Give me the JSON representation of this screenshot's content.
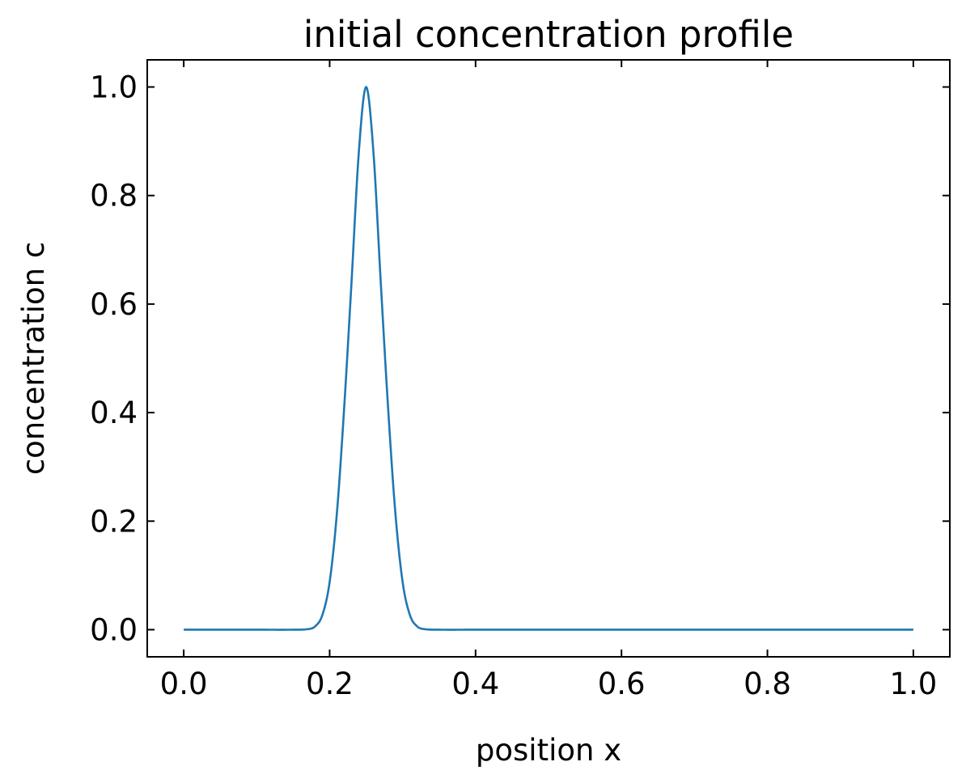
{
  "chart_data": {
    "type": "line",
    "title": "initial concentration profile",
    "xlabel": "position x",
    "ylabel": "concentration c",
    "xlim": [
      -0.05,
      1.05
    ],
    "ylim": [
      -0.05,
      1.05
    ],
    "xticks": [
      0.0,
      0.2,
      0.4,
      0.6,
      0.8,
      1.0
    ],
    "xtick_labels": [
      "0.0",
      "0.2",
      "0.4",
      "0.6",
      "0.8",
      "1.0"
    ],
    "yticks": [
      0.0,
      0.2,
      0.4,
      0.6,
      0.8,
      1.0
    ],
    "ytick_labels": [
      "0.0",
      "0.2",
      "0.4",
      "0.6",
      "0.8",
      "1.0"
    ],
    "grid": false,
    "ticks_direction": "in",
    "series": [
      {
        "color": "#1f77b4",
        "x": [
          0.0,
          0.05,
          0.1,
          0.15,
          0.17,
          0.18,
          0.19,
          0.2,
          0.21,
          0.22,
          0.23,
          0.24,
          0.25,
          0.26,
          0.27,
          0.28,
          0.29,
          0.3,
          0.31,
          0.32,
          0.33,
          0.35,
          0.4,
          0.5,
          0.6,
          0.7,
          0.8,
          0.9,
          1.0
        ],
        "y": [
          0.0,
          0.0,
          0.0,
          0.0,
          0.001,
          0.006,
          0.027,
          0.088,
          0.216,
          0.411,
          0.641,
          0.88,
          1.0,
          0.88,
          0.641,
          0.411,
          0.216,
          0.088,
          0.027,
          0.006,
          0.001,
          0.0,
          0.0,
          0.0,
          0.0,
          0.0,
          0.0,
          0.0,
          0.0
        ]
      }
    ]
  }
}
